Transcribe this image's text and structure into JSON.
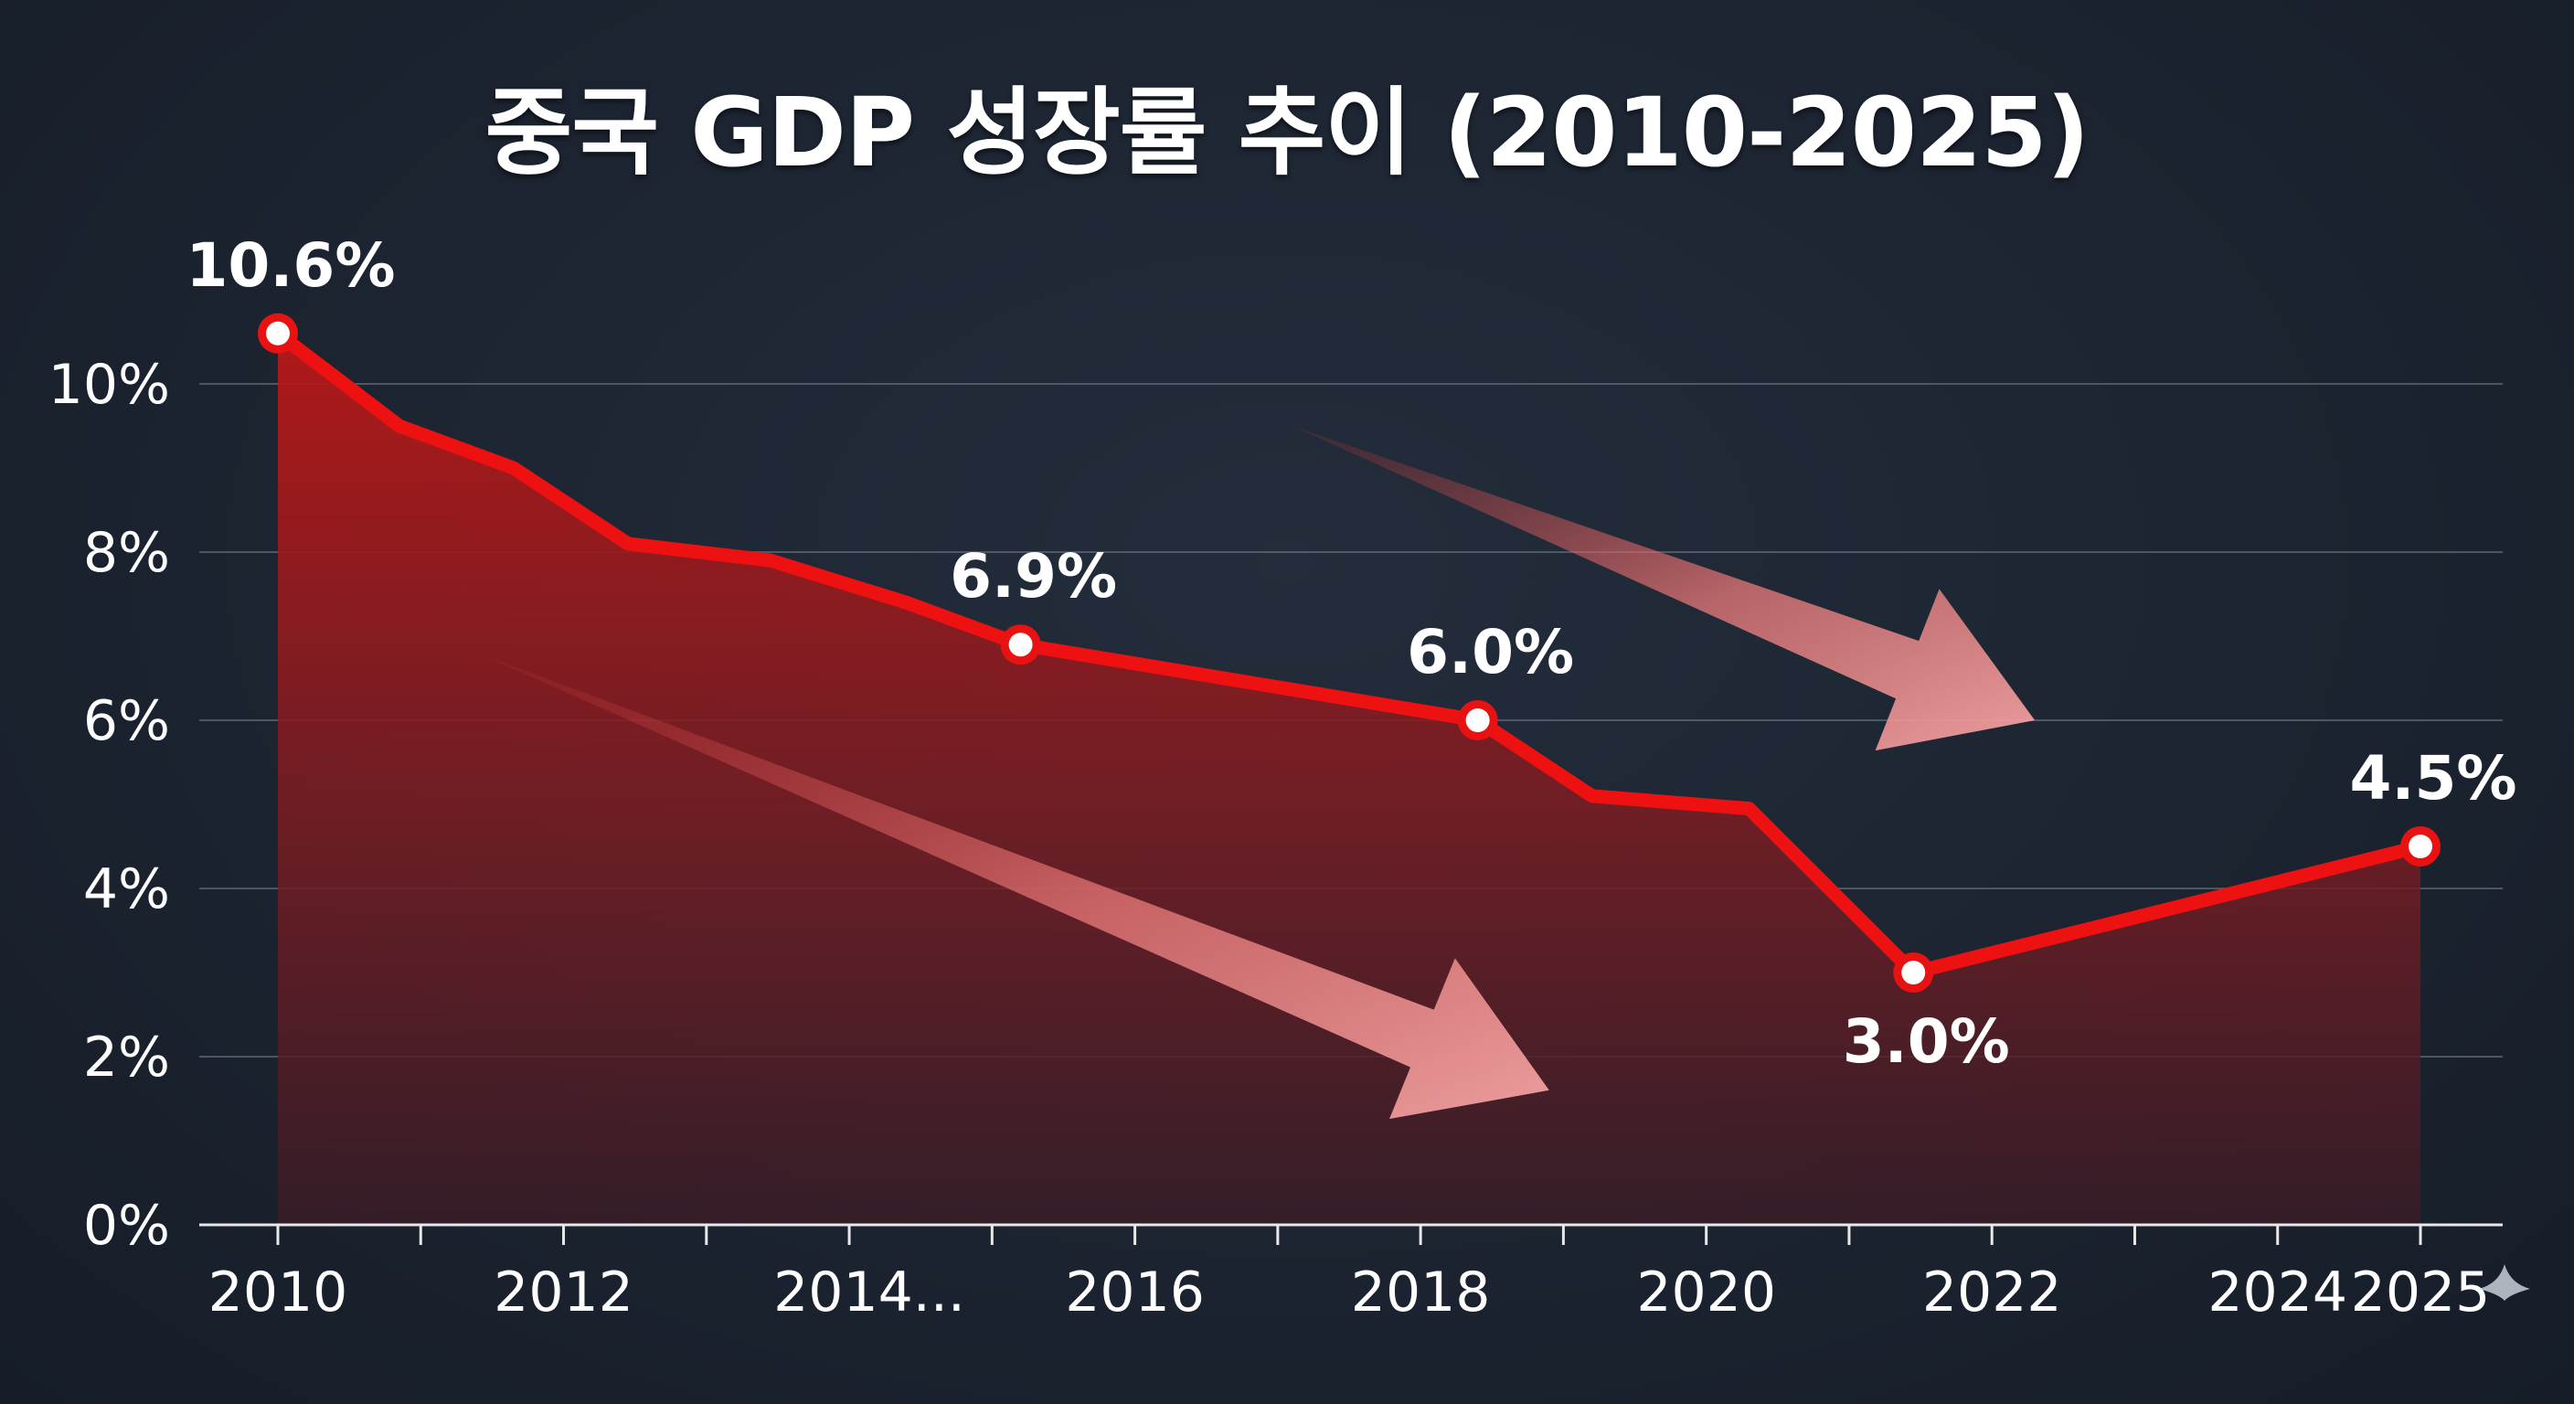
{
  "chart_data": {
    "type": "area",
    "title": "중국 GDP 성장률 추이 (2010-2025)",
    "xlabel": "",
    "ylabel": "",
    "xlim": [
      2010,
      2025
    ],
    "ylim": [
      0,
      10
    ],
    "yticks": [
      {
        "value": 0,
        "label": "0%"
      },
      {
        "value": 2,
        "label": "2%"
      },
      {
        "value": 4,
        "label": "4%"
      },
      {
        "value": 6,
        "label": "6%"
      },
      {
        "value": 8,
        "label": "8%"
      },
      {
        "value": 10,
        "label": "10%"
      }
    ],
    "xticks": [
      {
        "value": 2010,
        "label": "2010"
      },
      {
        "value": 2012,
        "label": "2012"
      },
      {
        "value": 2014,
        "label": "2014..."
      },
      {
        "value": 2016,
        "label": "2016"
      },
      {
        "value": 2018,
        "label": "2018"
      },
      {
        "value": 2020,
        "label": "2020"
      },
      {
        "value": 2022,
        "label": "2022"
      },
      {
        "value": 2024,
        "label": "2024"
      },
      {
        "value": 2025,
        "label": "2025"
      }
    ],
    "minor_xticks": [
      2011,
      2013,
      2015,
      2017,
      2019,
      2021,
      2023
    ],
    "grid": true,
    "series": [
      {
        "name": "GDP 성장률",
        "color": "#ee1111",
        "points": [
          {
            "x": 2010,
            "y": 10.6
          },
          {
            "x": 2010.85,
            "y": 9.5
          },
          {
            "x": 2011.65,
            "y": 9.0
          },
          {
            "x": 2012.45,
            "y": 8.1
          },
          {
            "x": 2013.45,
            "y": 7.9
          },
          {
            "x": 2014.4,
            "y": 7.4
          },
          {
            "x": 2015.2,
            "y": 6.9
          },
          {
            "x": 2018.4,
            "y": 6.0
          },
          {
            "x": 2019.2,
            "y": 5.1
          },
          {
            "x": 2020.3,
            "y": 4.95
          },
          {
            "x": 2021.45,
            "y": 3.0
          },
          {
            "x": 2025,
            "y": 4.5
          }
        ]
      }
    ],
    "annotations": [
      {
        "label": "10.6%",
        "x": 2010,
        "y": 10.6,
        "position": "above"
      },
      {
        "label": "6.9%",
        "x": 2015.2,
        "y": 6.9,
        "position": "above"
      },
      {
        "label": "6.0%",
        "x": 2018.4,
        "y": 6.0,
        "position": "above"
      },
      {
        "label": "3.0%",
        "x": 2021.45,
        "y": 3.0,
        "position": "below"
      },
      {
        "label": "4.5%",
        "x": 2025,
        "y": 4.5,
        "position": "above"
      }
    ],
    "trend_arrows": [
      {
        "from": {
          "x": 2011.4,
          "y": 6.8
        },
        "to": {
          "x": 2018.9,
          "y": 1.6
        }
      },
      {
        "from": {
          "x": 2017.1,
          "y": 9.5
        },
        "to": {
          "x": 2022.3,
          "y": 6.0
        }
      }
    ]
  },
  "colors": {
    "line": "#ee1111",
    "area_top": "#b31515",
    "area_bottom": "#3a1c24",
    "marker_fill": "#ffffff",
    "arrow": "#f08f8f"
  }
}
